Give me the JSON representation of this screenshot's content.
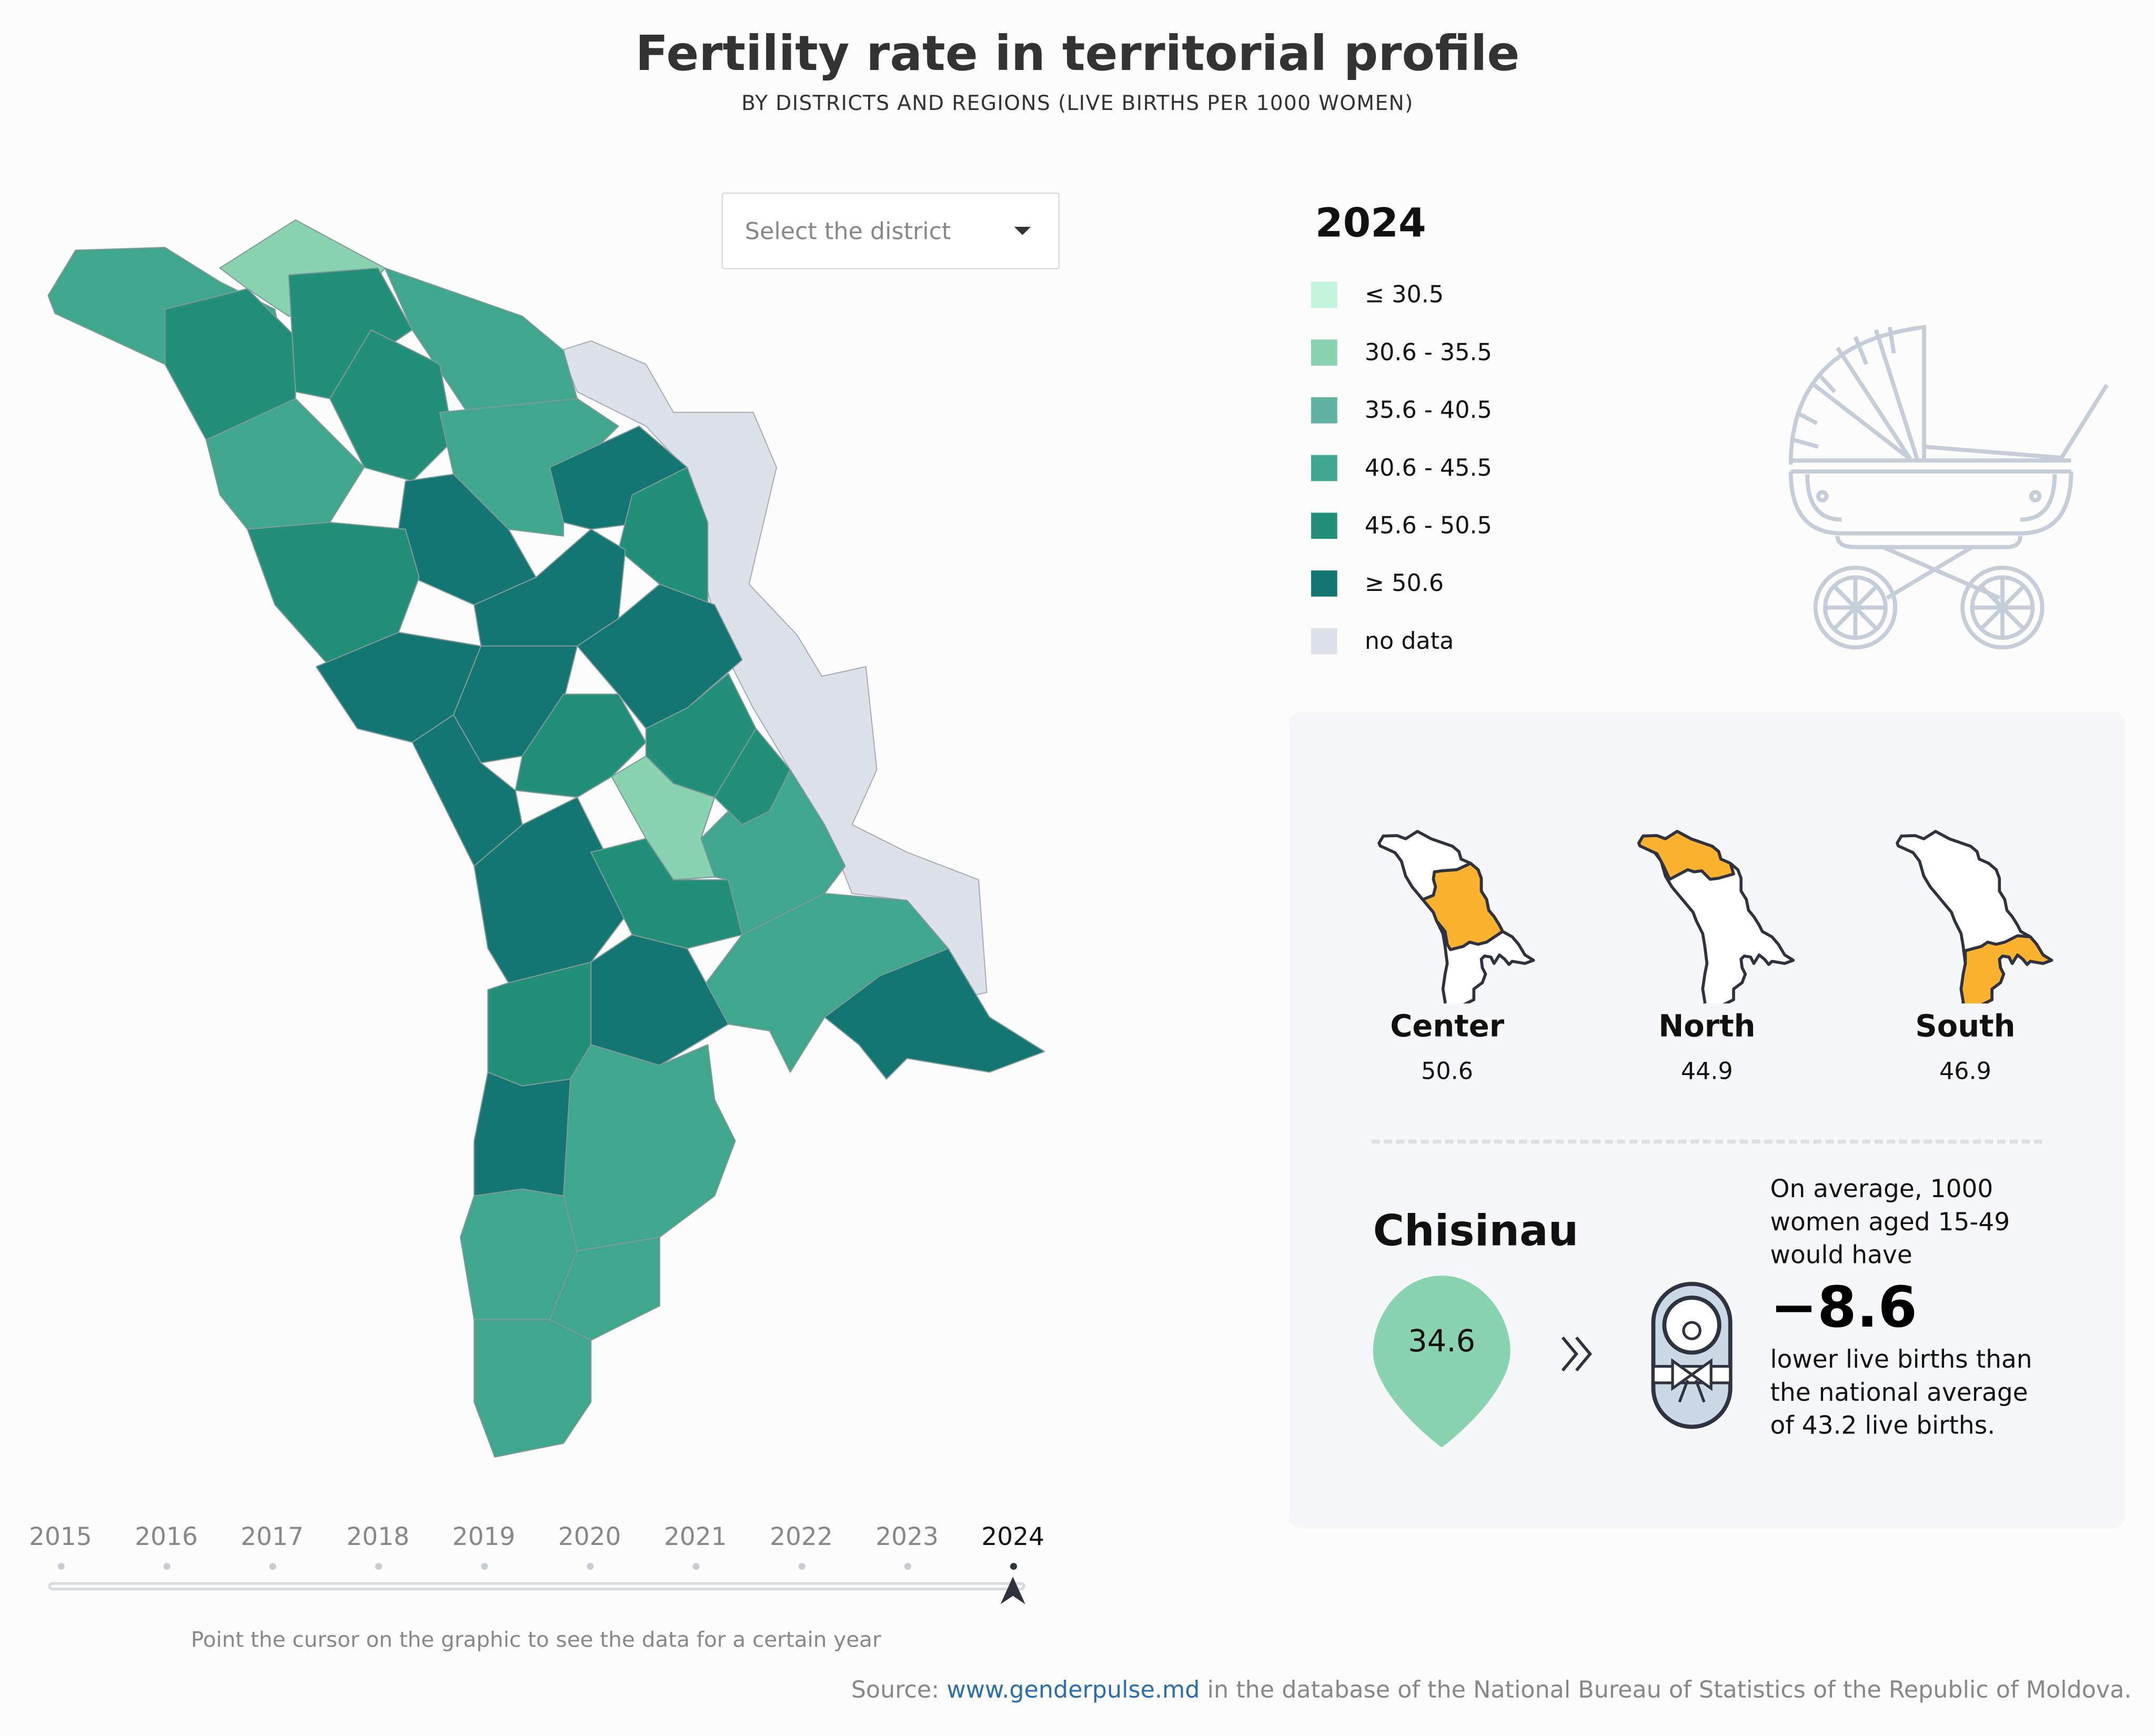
{
  "header": {
    "title": "Fertility rate in territorial profile",
    "subtitle": "BY DISTRICTS AND REGIONS (LIVE BIRTHS PER 1000 WOMEN)"
  },
  "district_select": {
    "placeholder": "Select the district",
    "icon": "caret-down-icon"
  },
  "legend": {
    "year": "2024",
    "items": [
      {
        "label": "≤ 30.5",
        "color": "#c3f5dc"
      },
      {
        "label": "30.6 - 35.5",
        "color": "#8ad3b0"
      },
      {
        "label": "35.6 - 40.5",
        "color": "#5fb3a0"
      },
      {
        "label": "40.6 - 45.5",
        "color": "#3ea78e"
      },
      {
        "label": "45.6 - 50.5",
        "color": "#228f78"
      },
      {
        "label": "≥ 50.6",
        "color": "#137672"
      },
      {
        "label": "no data",
        "color": "#dde1ea"
      }
    ]
  },
  "regions": [
    {
      "name": "Center",
      "value": "50.6"
    },
    {
      "name": "North",
      "value": "44.9"
    },
    {
      "name": "South",
      "value": "46.9"
    }
  ],
  "highlight_color": "#fbb22e",
  "selected": {
    "name": "Chisinau",
    "value": "34.6",
    "value_color": "#8ad3b0",
    "text_before": [
      "On average, 1000",
      "women aged 15-49",
      "would have"
    ],
    "difference": "−8.6",
    "text_after": [
      "lower live births than",
      "the national average",
      "of 43.2 live births."
    ]
  },
  "timeline": {
    "years": [
      "2015",
      "2016",
      "2017",
      "2018",
      "2019",
      "2020",
      "2021",
      "2022",
      "2023",
      "2024"
    ],
    "active": "2024",
    "hint": "Point the cursor on the graphic to see the data for a certain year"
  },
  "source": {
    "prefix": "Source: ",
    "link": "www.genderpulse.md",
    "suffix": " in the database of the National Bureau of Statistics of the Republic of Moldova."
  }
}
